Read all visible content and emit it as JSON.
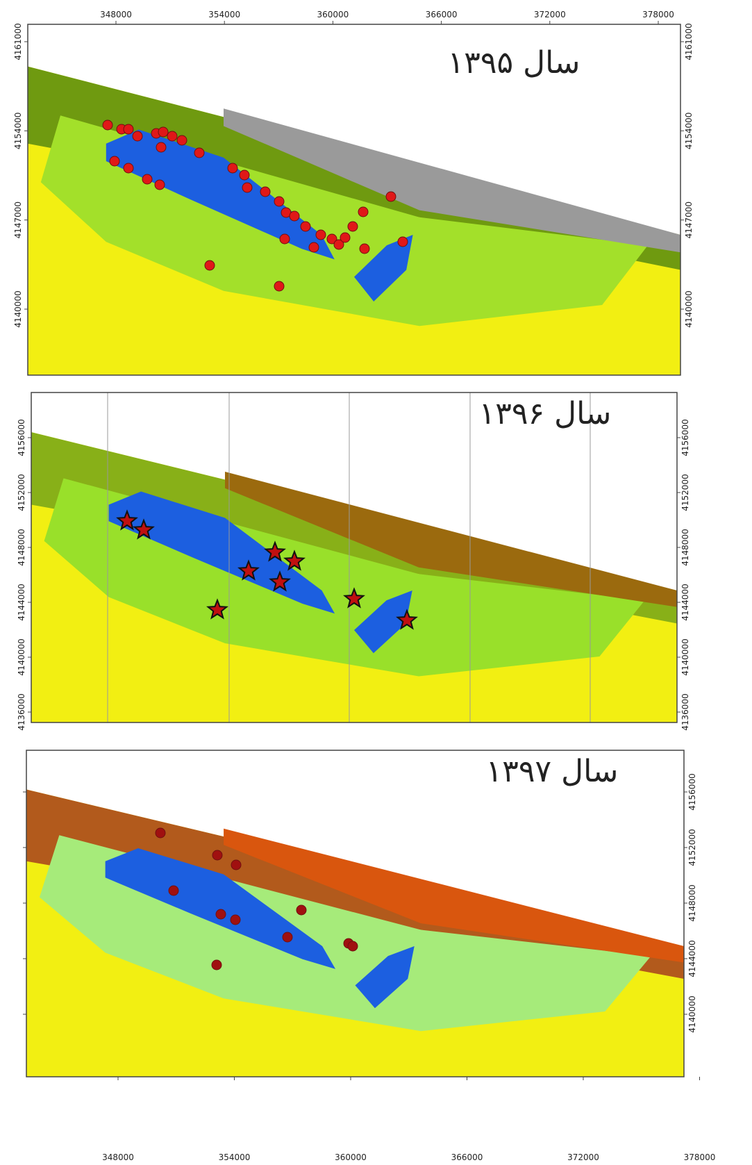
{
  "panels": [
    {
      "title": "سال ۱۳۹۵",
      "xticks": [
        348000,
        354000,
        360000,
        366000,
        372000,
        378000
      ],
      "yticks": [
        4161000,
        4154000,
        4147000,
        4140000
      ]
    },
    {
      "title": "سال ۱۳۹۶",
      "yticks": [
        4156000,
        4152000,
        4148000,
        4144000,
        4140000,
        4136000
      ]
    },
    {
      "title": "سال ۱۳۹۷",
      "xticks": [
        348000,
        354000,
        360000,
        366000,
        372000,
        378000
      ],
      "yticks": [
        4156000,
        4152000,
        4148000,
        4144000,
        4140000
      ]
    }
  ]
}
